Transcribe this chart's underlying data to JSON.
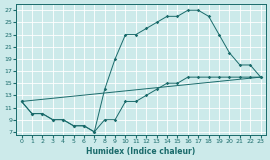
{
  "xlabel": "Humidex (Indice chaleur)",
  "bg_color": "#cceaea",
  "grid_color": "#ffffff",
  "line_color": "#1a6b6b",
  "xlim": [
    -0.5,
    23.5
  ],
  "ylim": [
    6.5,
    28
  ],
  "xticks": [
    0,
    1,
    2,
    3,
    4,
    5,
    6,
    7,
    8,
    9,
    10,
    11,
    12,
    13,
    14,
    15,
    16,
    17,
    18,
    19,
    20,
    21,
    22,
    23
  ],
  "yticks": [
    7,
    9,
    11,
    13,
    15,
    17,
    19,
    21,
    23,
    25,
    27
  ],
  "line1_x": [
    0,
    23
  ],
  "line1_y": [
    12,
    16
  ],
  "line2_x": [
    0,
    1,
    2,
    3,
    4,
    5,
    6,
    7,
    8,
    9,
    10,
    11,
    12,
    13,
    14,
    15,
    16,
    17,
    18,
    19,
    20,
    21,
    22,
    23
  ],
  "line2_y": [
    12,
    10,
    10,
    9,
    9,
    8,
    8,
    7,
    14,
    19,
    23,
    23,
    24,
    25,
    26,
    26,
    27,
    27,
    26,
    23,
    20,
    18,
    18,
    16
  ],
  "line3_x": [
    0,
    1,
    2,
    3,
    4,
    5,
    6,
    7,
    8,
    9,
    10,
    11,
    12,
    13,
    14,
    15,
    16,
    17,
    18,
    19,
    20,
    21,
    22,
    23
  ],
  "line3_y": [
    12,
    10,
    10,
    9,
    9,
    8,
    8,
    7,
    9,
    9,
    12,
    12,
    13,
    14,
    15,
    15,
    16,
    16,
    16,
    16,
    16,
    16,
    16,
    16
  ]
}
